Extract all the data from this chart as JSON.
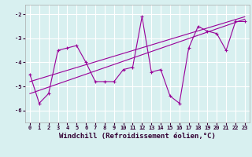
{
  "x": [
    0,
    1,
    2,
    3,
    4,
    5,
    6,
    7,
    8,
    9,
    10,
    11,
    12,
    13,
    14,
    15,
    16,
    17,
    18,
    19,
    20,
    21,
    22,
    23
  ],
  "y": [
    -4.5,
    -5.7,
    -5.3,
    -3.5,
    -3.4,
    -3.3,
    -4.0,
    -4.8,
    -4.8,
    -4.8,
    -4.3,
    -4.2,
    -2.1,
    -4.4,
    -4.3,
    -5.4,
    -5.7,
    -3.4,
    -2.5,
    -2.7,
    -2.8,
    -3.5,
    -2.3,
    -2.3
  ],
  "trend1_x": [
    0,
    23
  ],
  "trend1_y": [
    -5.3,
    -2.2
  ],
  "trend2_x": [
    0,
    23
  ],
  "trend2_y": [
    -4.8,
    -2.1
  ],
  "xlim": [
    -0.5,
    23.5
  ],
  "ylim": [
    -6.5,
    -1.6
  ],
  "yticks": [
    -6,
    -5,
    -4,
    -3,
    -2
  ],
  "xticks": [
    0,
    1,
    2,
    3,
    4,
    5,
    6,
    7,
    8,
    9,
    10,
    11,
    12,
    13,
    14,
    15,
    16,
    17,
    18,
    19,
    20,
    21,
    22,
    23
  ],
  "xlabel": "Windchill (Refroidissement éolien,°C)",
  "line_color": "#990099",
  "bg_color": "#d8f0f0",
  "grid_color": "#ffffff",
  "tick_fontsize": 5,
  "label_fontsize": 6.5
}
